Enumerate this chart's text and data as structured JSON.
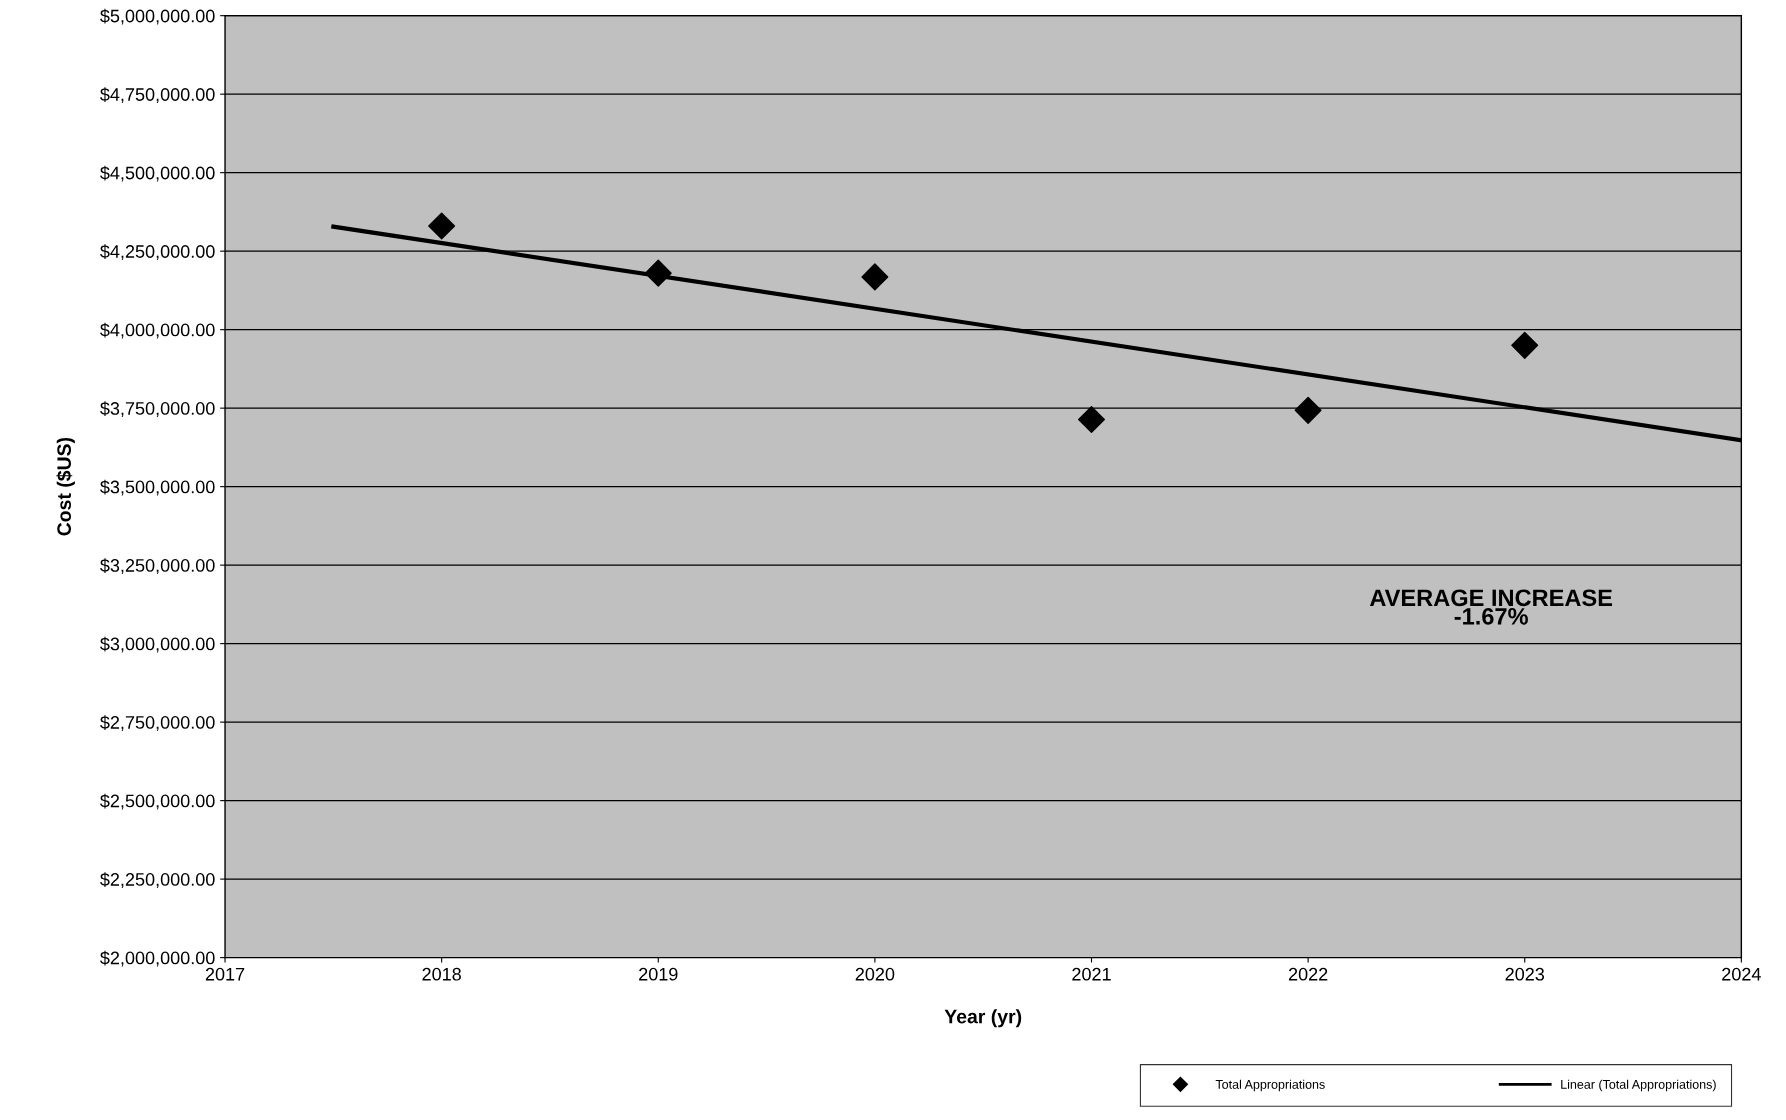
{
  "chart_data": {
    "type": "scatter",
    "xlabel": "Year (yr)",
    "ylabel": "Cost ($US)",
    "series": [
      {
        "name": "Total Appropriations",
        "color": "#000000",
        "marker": "diamond",
        "x": [
          2018,
          2019,
          2020,
          2021,
          2022,
          2023
        ],
        "values": [
          4330000,
          4180000,
          4168000,
          3714000,
          3743000,
          3950000
        ]
      },
      {
        "name": "Linear (Total Appropriations)",
        "type": "line",
        "color": "#000000",
        "marker": "none",
        "line_style": "solid",
        "x": [
          2017.5,
          2024
        ],
        "values": [
          4328000,
          3648000
        ]
      }
    ],
    "xlim": [
      2017,
      2024
    ],
    "xticks": [
      2017,
      2018,
      2019,
      2020,
      2021,
      2022,
      2023,
      2024
    ],
    "ylim": [
      2000000,
      5000000
    ],
    "yticks": [
      {
        "value": 2000000,
        "label": "$2,000,000.00"
      },
      {
        "value": 2250000,
        "label": "$2,250,000.00"
      },
      {
        "value": 2500000,
        "label": "$2,500,000.00"
      },
      {
        "value": 2750000,
        "label": "$2,750,000.00"
      },
      {
        "value": 3000000,
        "label": "$3,000,000.00"
      },
      {
        "value": 3250000,
        "label": "$3,250,000.00"
      },
      {
        "value": 3500000,
        "label": "$3,500,000.00"
      },
      {
        "value": 3750000,
        "label": "$3,750,000.00"
      },
      {
        "value": 4000000,
        "label": "$4,000,000.00"
      },
      {
        "value": 4250000,
        "label": "$4,250,000.00"
      },
      {
        "value": 4500000,
        "label": "$4,500,000.00"
      },
      {
        "value": 4750000,
        "label": "$4,750,000.00"
      },
      {
        "value": 5000000,
        "label": "$5,000,000.00"
      }
    ],
    "annotations": [
      "AVERAGE INCREASE\n-1.67%"
    ],
    "grid": "y",
    "legend": "bottom"
  }
}
